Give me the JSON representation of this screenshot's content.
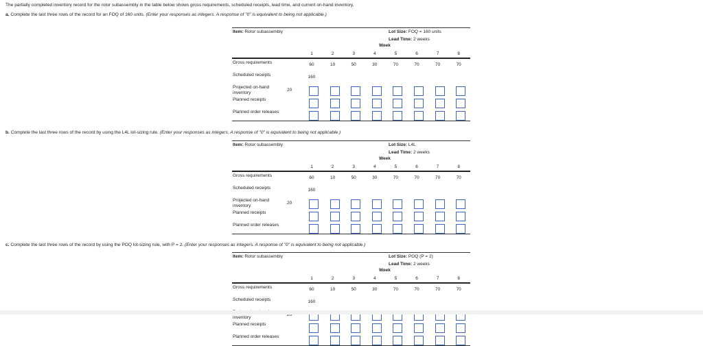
{
  "intro": "The partially completed inventory record for the rotor subassembly in the table below shows gross requirements, scheduled receipts, lead time, and current on-hand inventory.",
  "parts": [
    {
      "prefix": "a.",
      "text": "Complete the last three rows of the record for an FOQ of 160 units.",
      "note": "(Enter your responses as integers. A response of \"0\" is equivalent to being not applicable.)",
      "item_label": "Item:",
      "item": "Rotor subassembly",
      "lot_label": "Lot Size:",
      "lot": "FOQ = 160 units",
      "lead_label": "Lead Time:",
      "lead": "2 weeks"
    },
    {
      "prefix": "b.",
      "text": "Complete the last three rows of the record by using the L4L lot-sizing rule.",
      "note": "(Enter your responses as integers. A response of \"0\" is equivalent to being not applicable.)",
      "item_label": "Item:",
      "item": "Rotor subassembly",
      "lot_label": "Lot Size:",
      "lot": "L4L",
      "lead_label": "Lead Time:",
      "lead": "2 weeks"
    },
    {
      "prefix": "c.",
      "text": "Complete the last three rows of the record by using the POQ lot-sizing rule, with P = 2.",
      "note": "(Enter your responses as integers. A response of \"0\" is equivalent to being not applicable.)",
      "item_label": "Item:",
      "item": "Rotor subassembly",
      "lot_label": "Lot Size:",
      "lot": "POQ (P = 2)",
      "lead_label": "Lead Time:",
      "lead": "2 weeks"
    }
  ],
  "table": {
    "week_label": "Week",
    "weeks": [
      "1",
      "2",
      "3",
      "4",
      "5",
      "6",
      "7",
      "8"
    ],
    "rows": {
      "gross": {
        "label": "Gross requirements",
        "values": [
          "60",
          "10",
          "50",
          "30",
          "70",
          "70",
          "70",
          "70"
        ]
      },
      "scheduled": {
        "label": "Scheduled receipts",
        "values": [
          "160",
          "",
          "",
          "",
          "",
          "",
          "",
          ""
        ]
      },
      "projected": {
        "label": "Projected on-hand inventory",
        "on_hand": "20"
      },
      "planned_receipts": {
        "label": "Planned receipts"
      },
      "planned_releases": {
        "label": "Planned order releases"
      }
    },
    "input_values": ""
  }
}
